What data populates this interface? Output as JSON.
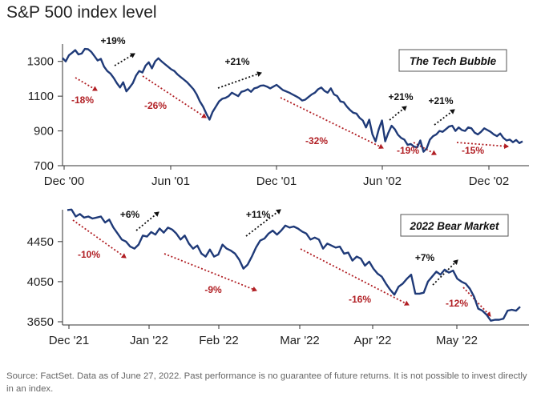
{
  "title": "S&P 500 index level",
  "source": "Source: FactSet. Data as of June 27, 2022. Past performance is no guarantee of future returns. It is not possible to invest directly in an index.",
  "colors": {
    "line": "#1f3a78",
    "decline": "#b11f24",
    "rally": "#111111",
    "axis": "#333333"
  },
  "chart_data": [
    {
      "type": "line",
      "label": "The Tech Bubble",
      "x_tick_labels": [
        "Dec '00",
        "Jun '01",
        "Dec '01",
        "Jun '02",
        "Dec '02"
      ],
      "y_ticks": [
        700,
        900,
        1100,
        1300
      ],
      "ylim": [
        700,
        1400
      ],
      "series": [
        {
          "values": [
            1320,
            1300,
            1335,
            1350,
            1365,
            1340,
            1345,
            1372,
            1370,
            1355,
            1330,
            1305,
            1315,
            1270,
            1245,
            1230,
            1205,
            1175,
            1150,
            1180,
            1128,
            1150,
            1175,
            1218,
            1245,
            1236,
            1275,
            1295,
            1260,
            1300,
            1318,
            1300,
            1285,
            1270,
            1255,
            1245,
            1225,
            1210,
            1195,
            1180,
            1160,
            1140,
            1110,
            1070,
            1040,
            1000,
            965,
            1010,
            1040,
            1070,
            1085,
            1090,
            1100,
            1120,
            1110,
            1100,
            1125,
            1130,
            1140,
            1125,
            1145,
            1150,
            1160,
            1162,
            1155,
            1145,
            1155,
            1165,
            1150,
            1135,
            1128,
            1120,
            1110,
            1100,
            1090,
            1075,
            1080,
            1095,
            1110,
            1120,
            1140,
            1150,
            1130,
            1120,
            1145,
            1110,
            1100,
            1070,
            1065,
            1040,
            1020,
            1005,
            1000,
            975,
            960,
            920,
            965,
            880,
            840,
            910,
            960,
            840,
            890,
            930,
            910,
            878,
            860,
            850,
            820,
            825,
            810,
            805,
            845,
            780,
            800,
            850,
            870,
            880,
            900,
            895,
            910,
            925,
            930,
            900,
            920,
            905,
            900,
            920,
            915,
            890,
            880,
            895,
            915,
            905,
            895,
            880,
            870,
            885,
            860,
            845,
            850,
            835,
            848,
            830,
            840
          ]
        }
      ],
      "annotations": [
        {
          "text": "-18%",
          "kind": "decline"
        },
        {
          "text": "+19%",
          "kind": "rally"
        },
        {
          "text": "-26%",
          "kind": "decline"
        },
        {
          "text": "+21%",
          "kind": "rally"
        },
        {
          "text": "-32%",
          "kind": "decline"
        },
        {
          "text": "+21%",
          "kind": "rally"
        },
        {
          "text": "-19%",
          "kind": "decline"
        },
        {
          "text": "+21%",
          "kind": "rally"
        },
        {
          "text": "-15%",
          "kind": "decline"
        }
      ]
    },
    {
      "type": "line",
      "label": "2022 Bear Market",
      "x_tick_labels": [
        "Dec '21",
        "Jan '22",
        "Feb '22",
        "Mar '22",
        "Apr '22",
        "May '22"
      ],
      "y_ticks": [
        3650,
        4050,
        4450
      ],
      "ylim": [
        3650,
        4800
      ],
      "series": [
        {
          "values": [
            4765,
            4770,
            4700,
            4725,
            4690,
            4700,
            4680,
            4690,
            4700,
            4640,
            4670,
            4590,
            4530,
            4470,
            4450,
            4400,
            4380,
            4420,
            4510,
            4500,
            4545,
            4520,
            4580,
            4540,
            4590,
            4570,
            4530,
            4470,
            4510,
            4430,
            4380,
            4410,
            4330,
            4300,
            4370,
            4300,
            4320,
            4420,
            4380,
            4360,
            4330,
            4270,
            4180,
            4220,
            4300,
            4390,
            4460,
            4480,
            4530,
            4560,
            4520,
            4560,
            4610,
            4590,
            4600,
            4580,
            4550,
            4530,
            4470,
            4490,
            4470,
            4380,
            4430,
            4410,
            4390,
            4400,
            4330,
            4340,
            4260,
            4300,
            4280,
            4210,
            4250,
            4180,
            4130,
            4100,
            4030,
            3970,
            3920,
            4000,
            4030,
            4080,
            4120,
            3930,
            3930,
            3940,
            4050,
            4100,
            4150,
            4120,
            4170,
            4140,
            4160,
            4080,
            4050,
            4030,
            3980,
            3900,
            3780,
            3760,
            3720,
            3660,
            3670,
            3670,
            3680,
            3760,
            3770,
            3760,
            3800
          ]
        }
      ],
      "annotations": [
        {
          "text": "-10%",
          "kind": "decline"
        },
        {
          "text": "+6%",
          "kind": "rally"
        },
        {
          "text": "-9%",
          "kind": "decline"
        },
        {
          "text": "+11%",
          "kind": "rally"
        },
        {
          "text": "-16%",
          "kind": "decline"
        },
        {
          "text": "+7%",
          "kind": "rally"
        },
        {
          "text": "-12%",
          "kind": "decline"
        }
      ]
    }
  ]
}
